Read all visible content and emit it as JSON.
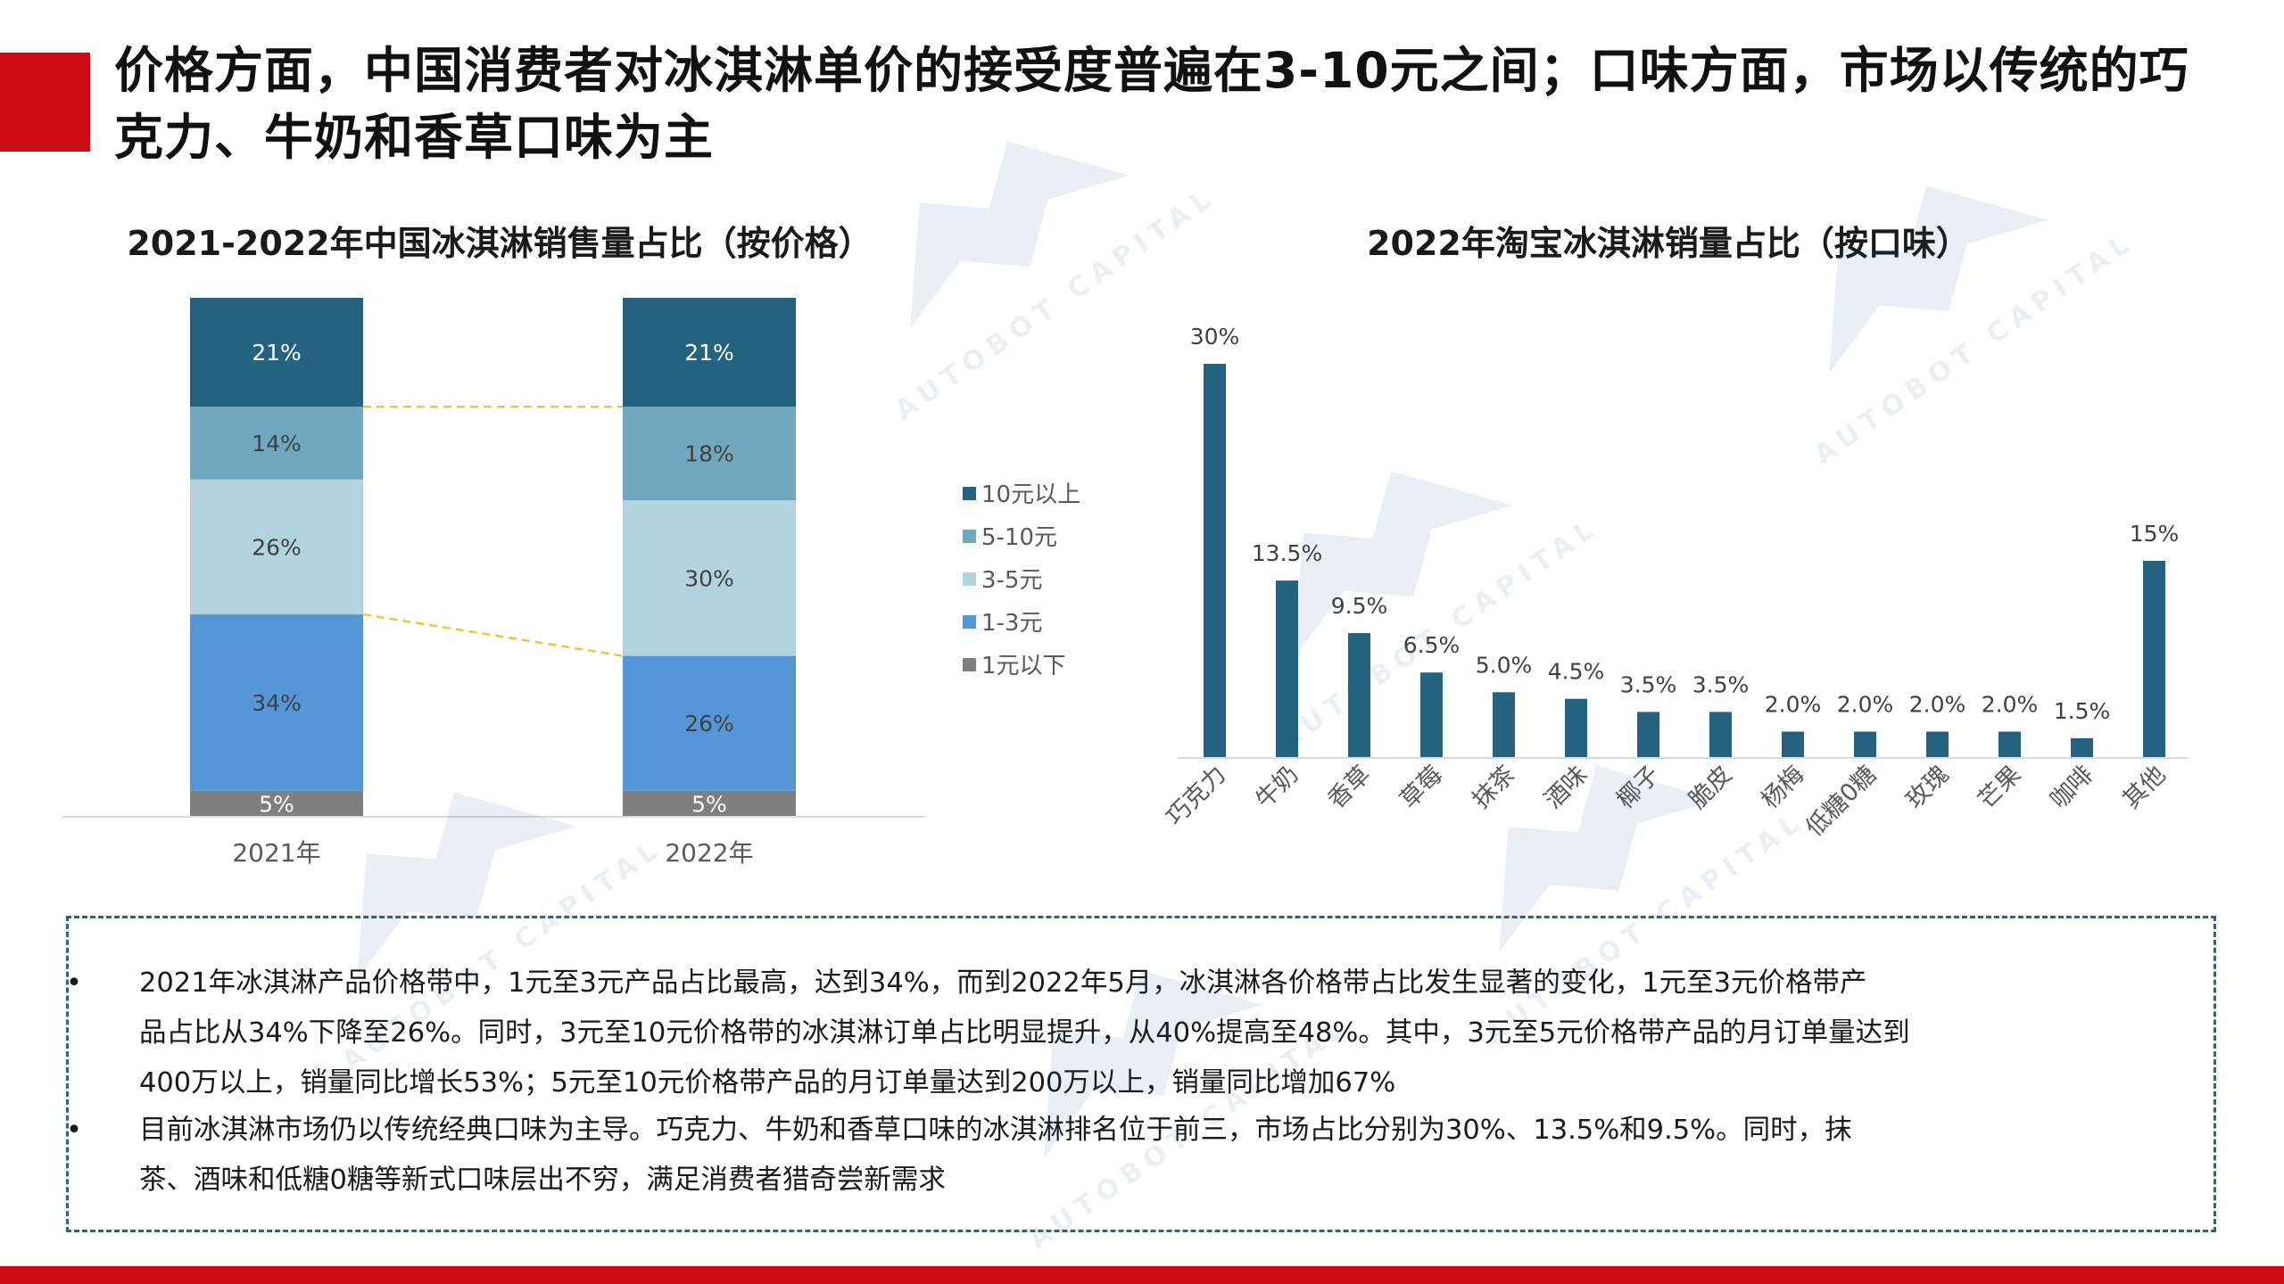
{
  "title": "价格方面，中国消费者对冰淇淋单价的接受度普遍在3-10元之间；口味方面，市场以传统的巧克力、牛奶和香草口味为主",
  "colors": {
    "accent_red": "#cc0a14",
    "price_10plus": "#24637f",
    "price_5_10": "#6fa8bf",
    "price_3_5": "#b2d4de",
    "price_1_3": "#5597d6",
    "price_under1": "#7f7f7f",
    "flavor_bar": "#24637f",
    "connector": "#f2c43a",
    "notes_border": "#2f6385"
  },
  "chart_data": [
    {
      "type": "bar",
      "stacked": true,
      "title": "2021-2022年中国冰淇淋销售量占比（按价格）",
      "categories": [
        "2021年",
        "2022年"
      ],
      "series": [
        {
          "name": "1元以下",
          "values": [
            5,
            5
          ],
          "labels": [
            "5%",
            "5%"
          ],
          "color": "#7f7f7f"
        },
        {
          "name": "1-3元",
          "values": [
            34,
            26
          ],
          "labels": [
            "34%",
            "26%"
          ],
          "color": "#5597d6"
        },
        {
          "name": "3-5元",
          "values": [
            26,
            30
          ],
          "labels": [
            "26%",
            "30%"
          ],
          "color": "#b2d4de"
        },
        {
          "name": "5-10元",
          "values": [
            14,
            18
          ],
          "labels": [
            "14%",
            "18%"
          ],
          "color": "#6fa8bf"
        },
        {
          "name": "10元以上",
          "values": [
            21,
            21
          ],
          "labels": [
            "21%",
            "21%"
          ],
          "color": "#24637f"
        }
      ],
      "legend_order": [
        "10元以上",
        "5-10元",
        "3-5元",
        "1-3元",
        "1元以下"
      ],
      "legend_position": "right",
      "ylim": [
        0,
        100
      ],
      "grid": false
    },
    {
      "type": "bar",
      "title": "2022年淘宝冰淇淋销量占比（按口味）",
      "categories": [
        "巧克力",
        "牛奶",
        "香草",
        "草莓",
        "抹茶",
        "酒味",
        "椰子",
        "脆皮",
        "杨梅",
        "低糖0糖",
        "玫瑰",
        "芒果",
        "咖啡",
        "其他"
      ],
      "values": [
        30,
        13.5,
        9.5,
        6.5,
        5.0,
        4.5,
        3.5,
        3.5,
        2.0,
        2.0,
        2.0,
        2.0,
        1.5,
        15
      ],
      "labels": [
        "30%",
        "13.5%",
        "9.5%",
        "6.5%",
        "5.0%",
        "4.5%",
        "3.5%",
        "3.5%",
        "2.0%",
        "2.0%",
        "2.0%",
        "2.0%",
        "1.5%",
        "15%"
      ],
      "ylim": [
        0,
        30
      ],
      "grid": false,
      "color": "#24637f"
    }
  ],
  "notes": [
    {
      "bullet": "•",
      "lines": [
        "2021年冰淇淋产品价格带中，1元至3元产品占比最高，达到34%，而到2022年5月，冰淇淋各价格带占比发生显著的变化，1元至3元价格带产",
        "品占比从34%下降至26%。同时，3元至10元价格带的冰淇淋订单占比明显提升，从40%提高至48%。其中，3元至5元价格带产品的月订单量达到",
        "400万以上，销量同比增长53%；5元至10元价格带产品的月订单量达到200万以上，销量同比增加67%"
      ]
    },
    {
      "bullet": "•",
      "lines": [
        "目前冰淇淋市场仍以传统经典口味为主导。巧克力、牛奶和香草口味的冰淇淋排名位于前三，市场占比分别为30%、13.5%和9.5%。同时，抹",
        "茶、酒味和低糖0糖等新式口味层出不穷，满足消费者猎奇尝新需求"
      ]
    }
  ],
  "watermark_text": "AUTOBOT CAPITAL"
}
